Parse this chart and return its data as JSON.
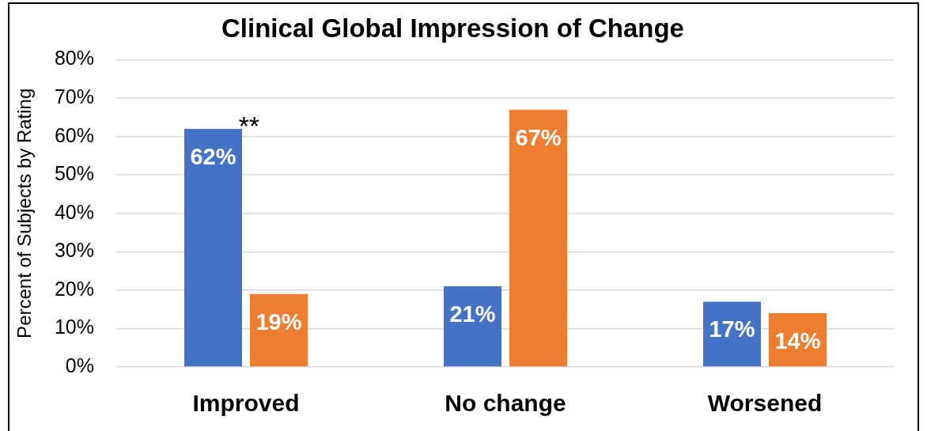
{
  "chart_data": {
    "type": "bar",
    "title": "Clinical Global Impression of Change",
    "ylabel": "Percent of Subjects by Rating",
    "categories": [
      "Improved",
      "No change",
      "Worsened"
    ],
    "series": [
      {
        "color": "#4472c4",
        "values": [
          62,
          21,
          17
        ],
        "value_labels": [
          "62%",
          "21%",
          "17%"
        ]
      },
      {
        "color": "#ed7d31",
        "values": [
          19,
          67,
          14
        ],
        "value_labels": [
          "19%",
          "67%",
          "14%"
        ]
      }
    ],
    "ylim": [
      0,
      80
    ],
    "yticks": [
      {
        "value": 0,
        "label": "0%"
      },
      {
        "value": 10,
        "label": "10%"
      },
      {
        "value": 20,
        "label": "20%"
      },
      {
        "value": 30,
        "label": "30%"
      },
      {
        "value": 40,
        "label": "40%"
      },
      {
        "value": 50,
        "label": "50%"
      },
      {
        "value": 60,
        "label": "60%"
      },
      {
        "value": 70,
        "label": "70%"
      },
      {
        "value": 80,
        "label": "80%"
      }
    ],
    "grid": "y",
    "annotations": [
      {
        "text": "**",
        "x": "Improved",
        "y": 62
      }
    ]
  }
}
